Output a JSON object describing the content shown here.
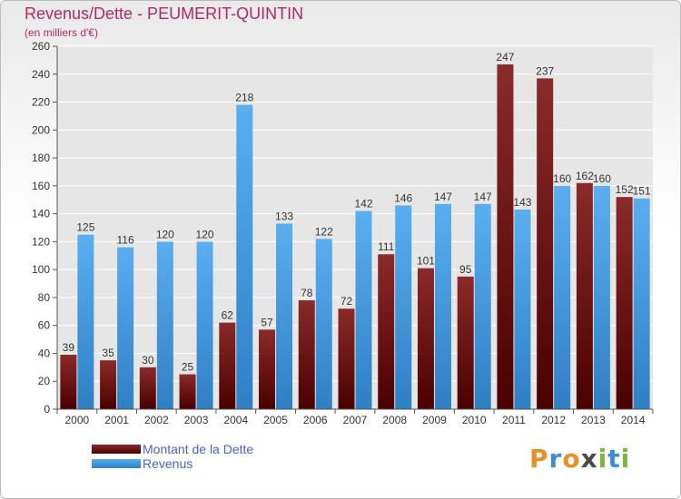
{
  "header": {
    "title": "Revenus/Dette - PEUMERIT-QUINTIN",
    "subtitle": "(en milliers d'€)"
  },
  "legend": {
    "items": [
      {
        "label": "Montant de la Dette",
        "color_top": "#8b2a2a",
        "color_bottom": "#4a0000"
      },
      {
        "label": "Revenus",
        "color_top": "#5aaef0",
        "color_bottom": "#2f7fc4"
      }
    ]
  },
  "logo": {
    "text": "Proxiti",
    "letters": [
      "P",
      "r",
      "o",
      "x",
      "i",
      "t",
      "i"
    ],
    "colors": [
      "#e8902a",
      "#3a8fd8",
      "#e8902a",
      "#4a4a4a",
      "#7ab83a",
      "#3a8fd8",
      "#7ab83a"
    ]
  },
  "colors": {
    "debt_top": "#8b2a2a",
    "debt_bottom": "#4a0000",
    "revenue_top": "#5aaef0",
    "revenue_bottom": "#2f7fc4",
    "grid": "#ffffff",
    "plot_bg": "#e6e6e6"
  },
  "chart_data": {
    "type": "bar",
    "title": "Revenus/Dette - PEUMERIT-QUINTIN",
    "subtitle": "(en milliers d'€)",
    "categories": [
      "2000",
      "2001",
      "2002",
      "2003",
      "2004",
      "2005",
      "2006",
      "2007",
      "2008",
      "2009",
      "2010",
      "2011",
      "2012",
      "2013",
      "2014"
    ],
    "series": [
      {
        "name": "Montant de la Dette",
        "values": [
          39,
          35,
          30,
          25,
          62,
          57,
          78,
          72,
          111,
          101,
          95,
          247,
          237,
          162,
          152
        ]
      },
      {
        "name": "Revenus",
        "values": [
          125,
          116,
          120,
          120,
          218,
          133,
          122,
          142,
          146,
          147,
          147,
          143,
          160,
          160,
          151
        ]
      }
    ],
    "ylim": [
      0,
      260
    ],
    "yticks": [
      0,
      20,
      40,
      60,
      80,
      100,
      120,
      140,
      160,
      180,
      200,
      220,
      240,
      260
    ],
    "grid": true,
    "legend_position": "bottom-left"
  }
}
